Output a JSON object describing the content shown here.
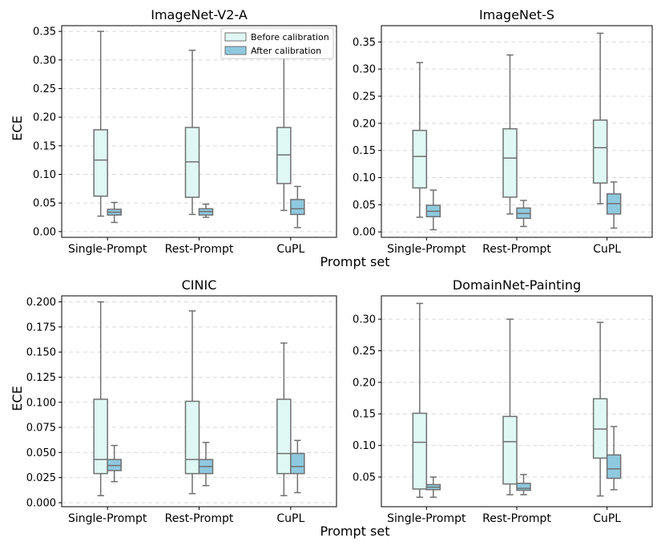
{
  "figure": {
    "xlabel": "Prompt set",
    "ylabel": "ECE",
    "legend": {
      "placement": "top-right",
      "items": [
        "Before calibration",
        "After calibration"
      ],
      "colors": [
        "#dff8f3",
        "#8fc9df"
      ]
    },
    "colors": {
      "before": "#dff8f3",
      "after": "#8fc9df",
      "stroke": "#707070",
      "grid": "#d9d9d9"
    }
  },
  "chart_data": [
    {
      "type": "box",
      "title": "ImageNet-V2-A",
      "categories": [
        "Single-Prompt",
        "Rest-Prompt",
        "CuPL"
      ],
      "ylim": [
        -0.01,
        0.36
      ],
      "yticks": [
        0.0,
        0.05,
        0.1,
        0.15,
        0.2,
        0.25,
        0.3,
        0.35
      ],
      "ytick_labels": [
        "0.00",
        "0.05",
        "0.10",
        "0.15",
        "0.20",
        "0.25",
        "0.30",
        "0.35"
      ],
      "grid": true,
      "series": [
        {
          "name": "Before calibration",
          "boxes": [
            {
              "whislo": 0.027,
              "q1": 0.062,
              "med": 0.125,
              "q3": 0.178,
              "whishi": 0.35
            },
            {
              "whislo": 0.03,
              "q1": 0.06,
              "med": 0.122,
              "q3": 0.182,
              "whishi": 0.317
            },
            {
              "whislo": 0.037,
              "q1": 0.084,
              "med": 0.134,
              "q3": 0.182,
              "whishi": 0.318
            }
          ]
        },
        {
          "name": "After calibration",
          "boxes": [
            {
              "whislo": 0.016,
              "q1": 0.029,
              "med": 0.034,
              "q3": 0.039,
              "whishi": 0.051
            },
            {
              "whislo": 0.025,
              "q1": 0.029,
              "med": 0.035,
              "q3": 0.04,
              "whishi": 0.048
            },
            {
              "whislo": 0.007,
              "q1": 0.03,
              "med": 0.04,
              "q3": 0.056,
              "whishi": 0.079
            }
          ]
        }
      ]
    },
    {
      "type": "box",
      "title": "ImageNet-S",
      "categories": [
        "Single-Prompt",
        "Rest-Prompt",
        "CuPL"
      ],
      "ylim": [
        -0.01,
        0.38
      ],
      "yticks": [
        0.0,
        0.05,
        0.1,
        0.15,
        0.2,
        0.25,
        0.3,
        0.35
      ],
      "ytick_labels": [
        "0.00",
        "0.05",
        "0.10",
        "0.15",
        "0.20",
        "0.25",
        "0.30",
        "0.35"
      ],
      "grid": true,
      "series": [
        {
          "name": "Before calibration",
          "boxes": [
            {
              "whislo": 0.027,
              "q1": 0.081,
              "med": 0.139,
              "q3": 0.187,
              "whishi": 0.312
            },
            {
              "whislo": 0.033,
              "q1": 0.064,
              "med": 0.136,
              "q3": 0.19,
              "whishi": 0.326
            },
            {
              "whislo": 0.052,
              "q1": 0.09,
              "med": 0.155,
              "q3": 0.206,
              "whishi": 0.366
            }
          ]
        },
        {
          "name": "After calibration",
          "boxes": [
            {
              "whislo": 0.004,
              "q1": 0.028,
              "med": 0.038,
              "q3": 0.049,
              "whishi": 0.077
            },
            {
              "whislo": 0.01,
              "q1": 0.025,
              "med": 0.034,
              "q3": 0.044,
              "whishi": 0.058
            },
            {
              "whislo": 0.007,
              "q1": 0.033,
              "med": 0.052,
              "q3": 0.07,
              "whishi": 0.092
            }
          ]
        }
      ]
    },
    {
      "type": "box",
      "title": "CINIC",
      "categories": [
        "Single-Prompt",
        "Rest-Prompt",
        "CuPL"
      ],
      "ylim": [
        -0.004,
        0.206
      ],
      "yticks": [
        0.0,
        0.025,
        0.05,
        0.075,
        0.1,
        0.125,
        0.15,
        0.175,
        0.2
      ],
      "ytick_labels": [
        "0.000",
        "0.025",
        "0.050",
        "0.075",
        "0.100",
        "0.125",
        "0.150",
        "0.175",
        "0.200"
      ],
      "grid": true,
      "series": [
        {
          "name": "Before calibration",
          "boxes": [
            {
              "whislo": 0.007,
              "q1": 0.029,
              "med": 0.043,
              "q3": 0.103,
              "whishi": 0.2
            },
            {
              "whislo": 0.009,
              "q1": 0.029,
              "med": 0.043,
              "q3": 0.101,
              "whishi": 0.191
            },
            {
              "whislo": 0.007,
              "q1": 0.029,
              "med": 0.049,
              "q3": 0.103,
              "whishi": 0.159
            }
          ]
        },
        {
          "name": "After calibration",
          "boxes": [
            {
              "whislo": 0.021,
              "q1": 0.032,
              "med": 0.037,
              "q3": 0.043,
              "whishi": 0.057
            },
            {
              "whislo": 0.017,
              "q1": 0.029,
              "med": 0.036,
              "q3": 0.043,
              "whishi": 0.06
            },
            {
              "whislo": 0.01,
              "q1": 0.029,
              "med": 0.036,
              "q3": 0.049,
              "whishi": 0.062
            }
          ]
        }
      ]
    },
    {
      "type": "box",
      "title": "DomainNet-Painting",
      "categories": [
        "Single-Prompt",
        "Rest-Prompt",
        "CuPL"
      ],
      "ylim": [
        0.003,
        0.337
      ],
      "yticks": [
        0.05,
        0.1,
        0.15,
        0.2,
        0.25,
        0.3
      ],
      "ytick_labels": [
        "0.05",
        "0.10",
        "0.15",
        "0.20",
        "0.25",
        "0.30"
      ],
      "grid": true,
      "series": [
        {
          "name": "Before calibration",
          "boxes": [
            {
              "whislo": 0.018,
              "q1": 0.031,
              "med": 0.105,
              "q3": 0.151,
              "whishi": 0.325
            },
            {
              "whislo": 0.022,
              "q1": 0.039,
              "med": 0.106,
              "q3": 0.146,
              "whishi": 0.3
            },
            {
              "whislo": 0.02,
              "q1": 0.08,
              "med": 0.126,
              "q3": 0.174,
              "whishi": 0.295
            }
          ]
        },
        {
          "name": "After calibration",
          "boxes": [
            {
              "whislo": 0.018,
              "q1": 0.03,
              "med": 0.034,
              "q3": 0.038,
              "whishi": 0.05
            },
            {
              "whislo": 0.022,
              "q1": 0.029,
              "med": 0.032,
              "q3": 0.04,
              "whishi": 0.054
            },
            {
              "whislo": 0.03,
              "q1": 0.048,
              "med": 0.063,
              "q3": 0.085,
              "whishi": 0.13
            }
          ]
        }
      ]
    }
  ]
}
